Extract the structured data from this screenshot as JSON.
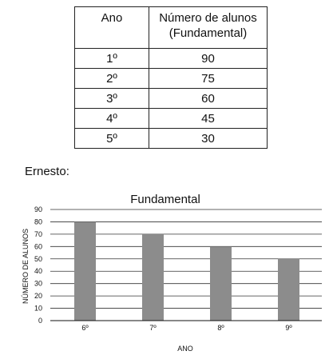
{
  "table": {
    "headers": [
      "Ano",
      "Número de alunos\n(Fundamental)"
    ],
    "rows": [
      {
        "ano": "1º",
        "alunos": "90"
      },
      {
        "ano": "2º",
        "alunos": "75"
      },
      {
        "ano": "3º",
        "alunos": "60"
      },
      {
        "ano": "4º",
        "alunos": "45"
      },
      {
        "ano": "5º",
        "alunos": "30"
      }
    ]
  },
  "ernesto_label": "Ernesto:",
  "chart_data": {
    "type": "bar",
    "title": "Fundamental",
    "xlabel": "ANO",
    "ylabel": "NÚMERO DE ALUNOS",
    "categories": [
      "6º",
      "7º",
      "8º",
      "9º"
    ],
    "values": [
      80,
      70,
      60,
      50
    ],
    "ylim": [
      0,
      90
    ],
    "yticks": [
      0,
      10,
      20,
      30,
      40,
      50,
      60,
      70,
      80,
      90
    ],
    "grid": true,
    "bar_color": "#8c8c8c"
  }
}
